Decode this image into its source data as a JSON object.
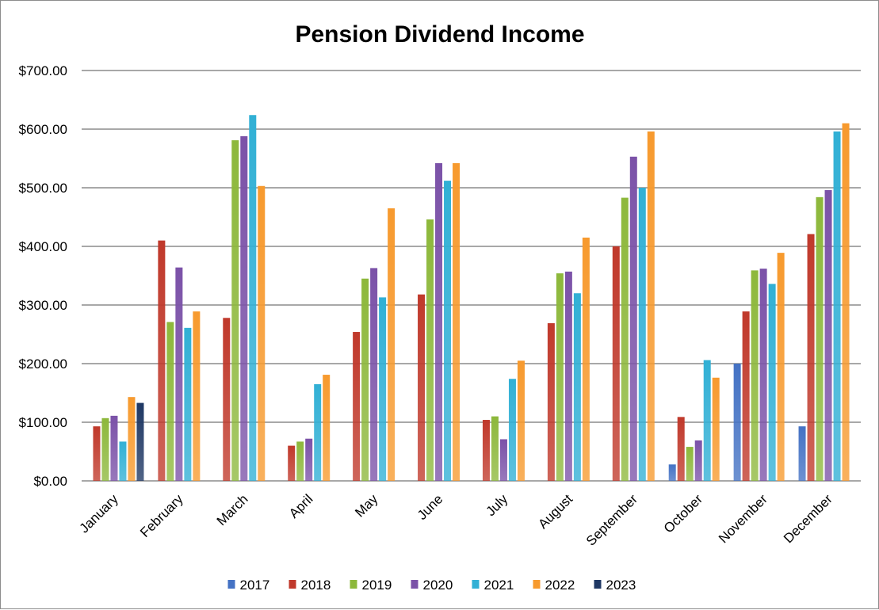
{
  "chart_data": {
    "type": "bar",
    "title": "Pension Dividend Income",
    "xlabel": "",
    "ylabel": "",
    "ylim": [
      0,
      700
    ],
    "yticks": [
      "$0.00",
      "$100.00",
      "$200.00",
      "$300.00",
      "$400.00",
      "$500.00",
      "$600.00",
      "$700.00"
    ],
    "ytick_values": [
      0,
      100,
      200,
      300,
      400,
      500,
      600,
      700
    ],
    "grid": true,
    "legend_position": "bottom",
    "categories": [
      "January",
      "February",
      "March",
      "April",
      "May",
      "June",
      "July",
      "August",
      "September",
      "October",
      "November",
      "December"
    ],
    "series": [
      {
        "name": "2017",
        "color": "#4472c4",
        "values": [
          null,
          null,
          null,
          null,
          null,
          null,
          null,
          null,
          null,
          28,
          200,
          93
        ]
      },
      {
        "name": "2018",
        "color": "#c0392b",
        "values": [
          93,
          410,
          278,
          60,
          254,
          318,
          104,
          269,
          400,
          109,
          289,
          421
        ]
      },
      {
        "name": "2019",
        "color": "#8db83b",
        "values": [
          107,
          271,
          581,
          67,
          345,
          446,
          110,
          354,
          483,
          58,
          359,
          484
        ]
      },
      {
        "name": "2020",
        "color": "#7b52a8",
        "values": [
          111,
          364,
          588,
          72,
          363,
          542,
          71,
          357,
          553,
          69,
          362,
          496
        ]
      },
      {
        "name": "2021",
        "color": "#31b0d5",
        "values": [
          67,
          261,
          624,
          165,
          313,
          512,
          174,
          320,
          500,
          206,
          336,
          596
        ]
      },
      {
        "name": "2022",
        "color": "#f79a2e",
        "values": [
          143,
          289,
          503,
          181,
          465,
          542,
          205,
          415,
          596,
          176,
          389,
          610
        ]
      },
      {
        "name": "2023",
        "color": "#1f3864",
        "values": [
          133,
          null,
          null,
          null,
          null,
          null,
          null,
          null,
          null,
          null,
          null,
          null
        ]
      }
    ]
  }
}
